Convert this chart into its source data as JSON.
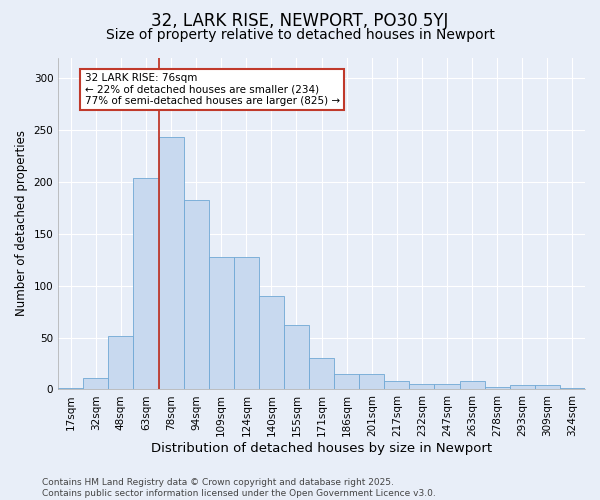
{
  "title": "32, LARK RISE, NEWPORT, PO30 5YJ",
  "subtitle": "Size of property relative to detached houses in Newport",
  "xlabel": "Distribution of detached houses by size in Newport",
  "ylabel": "Number of detached properties",
  "categories": [
    "17sqm",
    "32sqm",
    "48sqm",
    "63sqm",
    "78sqm",
    "94sqm",
    "109sqm",
    "124sqm",
    "140sqm",
    "155sqm",
    "171sqm",
    "186sqm",
    "201sqm",
    "217sqm",
    "232sqm",
    "247sqm",
    "263sqm",
    "278sqm",
    "293sqm",
    "309sqm",
    "324sqm"
  ],
  "values": [
    1,
    11,
    52,
    204,
    243,
    183,
    128,
    128,
    90,
    62,
    30,
    15,
    15,
    8,
    5,
    5,
    8,
    2,
    4,
    4,
    1
  ],
  "bar_color": "#c8d9ef",
  "bar_edge_color": "#6fa8d5",
  "vline_color": "#c0392b",
  "annotation_text": "32 LARK RISE: 76sqm\n← 22% of detached houses are smaller (234)\n77% of semi-detached houses are larger (825) →",
  "annotation_box_color": "#c0392b",
  "ylim": [
    0,
    320
  ],
  "yticks": [
    0,
    50,
    100,
    150,
    200,
    250,
    300
  ],
  "background_color": "#e8eef8",
  "plot_bg_color": "#e8eef8",
  "footer_line1": "Contains HM Land Registry data © Crown copyright and database right 2025.",
  "footer_line2": "Contains public sector information licensed under the Open Government Licence v3.0.",
  "title_fontsize": 12,
  "subtitle_fontsize": 10,
  "xlabel_fontsize": 9.5,
  "ylabel_fontsize": 8.5,
  "tick_fontsize": 7.5,
  "annotation_fontsize": 7.5,
  "footer_fontsize": 6.5
}
